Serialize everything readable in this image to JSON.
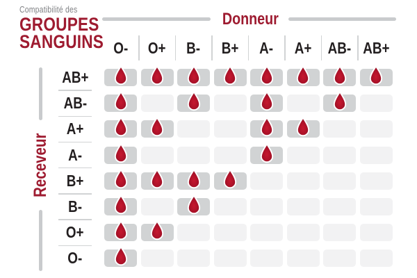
{
  "title": {
    "eyebrow": "Compatibilité des",
    "line1": "GROUPES",
    "line2": "SANGUINS"
  },
  "chart_data": {
    "type": "heatmap",
    "title": "Compatibilité des groupes sanguins",
    "x_axis_label": "Donneur",
    "y_axis_label": "Receveur",
    "x_categories": [
      "O-",
      "O+",
      "B-",
      "B+",
      "A-",
      "A+",
      "AB-",
      "AB+"
    ],
    "y_categories": [
      "AB+",
      "AB-",
      "A+",
      "A-",
      "B+",
      "B-",
      "O+",
      "O-"
    ],
    "matrix": [
      [
        1,
        1,
        1,
        1,
        1,
        1,
        1,
        1
      ],
      [
        1,
        0,
        1,
        0,
        1,
        0,
        1,
        0
      ],
      [
        1,
        1,
        0,
        0,
        1,
        1,
        0,
        0
      ],
      [
        1,
        0,
        0,
        0,
        1,
        0,
        0,
        0
      ],
      [
        1,
        1,
        1,
        1,
        0,
        0,
        0,
        0
      ],
      [
        1,
        0,
        1,
        0,
        0,
        0,
        0,
        0
      ],
      [
        1,
        1,
        0,
        0,
        0,
        0,
        0,
        0
      ],
      [
        1,
        0,
        0,
        0,
        0,
        0,
        0,
        0
      ]
    ],
    "value_meaning": {
      "1": "compatible (goutte de sang)",
      "0": "incompatible (case vide)"
    },
    "legend_position": "none",
    "grid": "off"
  },
  "icons": {
    "compatible_marker": "blood-drop-icon"
  },
  "colors": {
    "accent_red": "#9e1b30",
    "drop_red_center": "#c6182f",
    "drop_red_edge": "#8a0f23",
    "cell_filled": "#d1d3d4",
    "cell_empty": "#f2f2f3",
    "line_gray": "#c9cbcd",
    "divider_gray": "#d1d3d4",
    "label_dark": "#231f20",
    "eyebrow_gray": "#808285",
    "background": "#ffffff"
  }
}
